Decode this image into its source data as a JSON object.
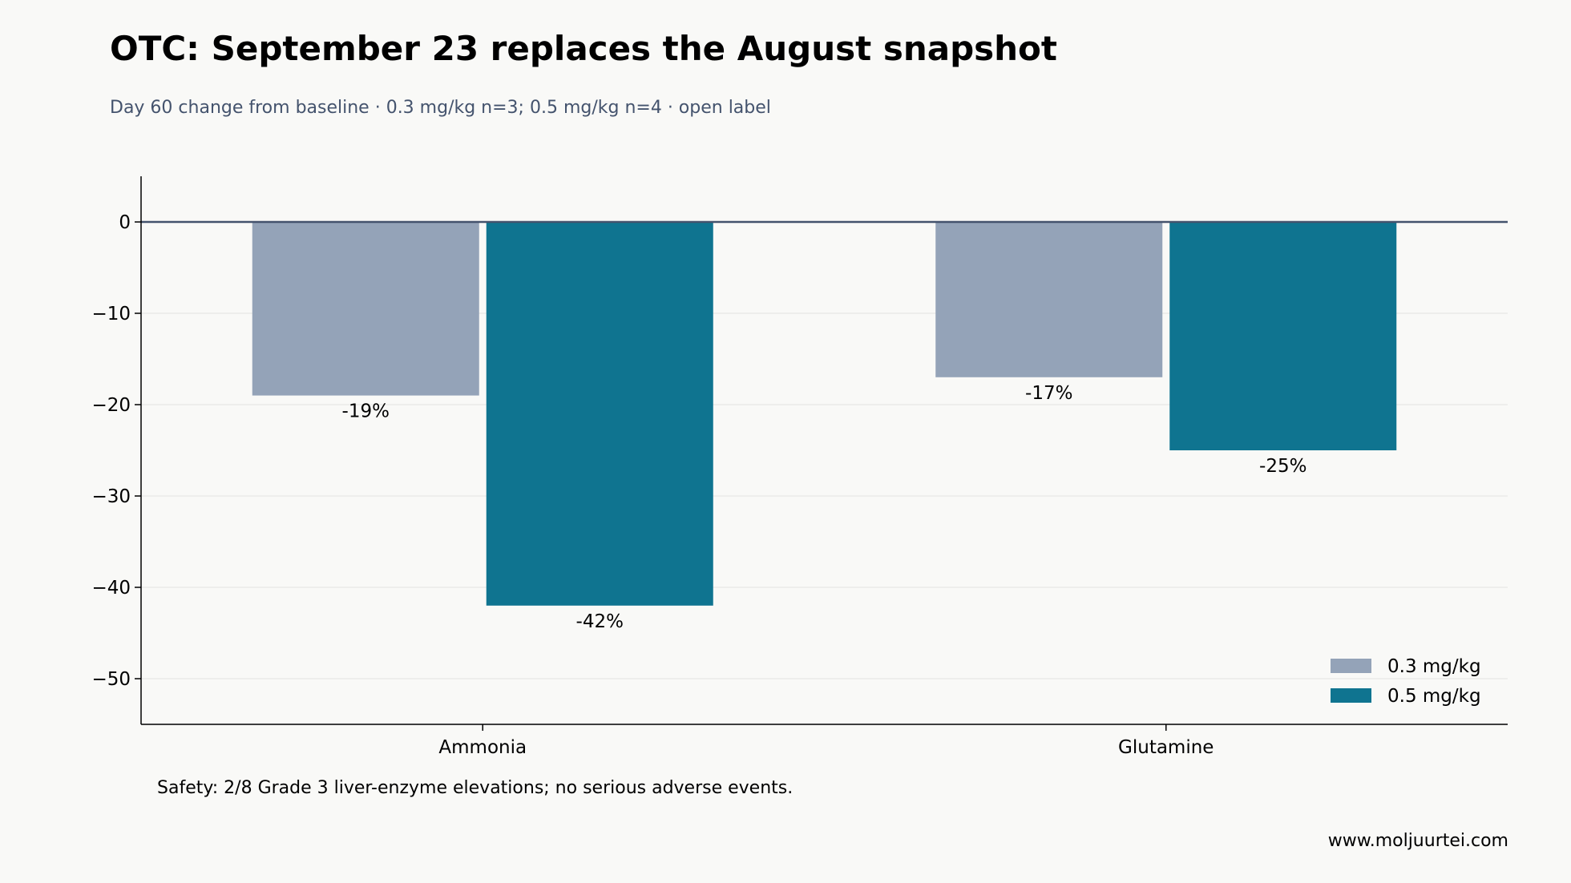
{
  "title": "OTC: September 23 replaces the August snapshot",
  "subtitle": "Day 60 change from baseline · 0.3 mg/kg n=3; 0.5 mg/kg n=4 · open label",
  "footnote": "Safety: 2/8 Grade 3 liver-enzyme elevations; no serious adverse events.",
  "source": "www.moljuurtei.com",
  "colors": {
    "series_0_3": "#94a3b8",
    "series_0_5": "#0f7490",
    "zero_line": "#44536d",
    "grid": "#ebebe8",
    "axis": "#000000"
  },
  "chart_data": {
    "type": "bar",
    "categories": [
      "Ammonia",
      "Glutamine"
    ],
    "series": [
      {
        "name": "0.3 mg/kg",
        "values": [
          -19,
          -17
        ],
        "labels": [
          "-19%",
          "-17%"
        ]
      },
      {
        "name": "0.5 mg/kg",
        "values": [
          -42,
          -25
        ],
        "labels": [
          "-42%",
          "-25%"
        ]
      }
    ],
    "ylim": [
      -55,
      5
    ],
    "yticks": [
      0,
      -10,
      -20,
      -30,
      -40,
      -50
    ],
    "ytick_labels": [
      "0",
      "−10",
      "−20",
      "−30",
      "−40",
      "−50"
    ],
    "grid": "horizontal",
    "legend": "bottom-right"
  }
}
